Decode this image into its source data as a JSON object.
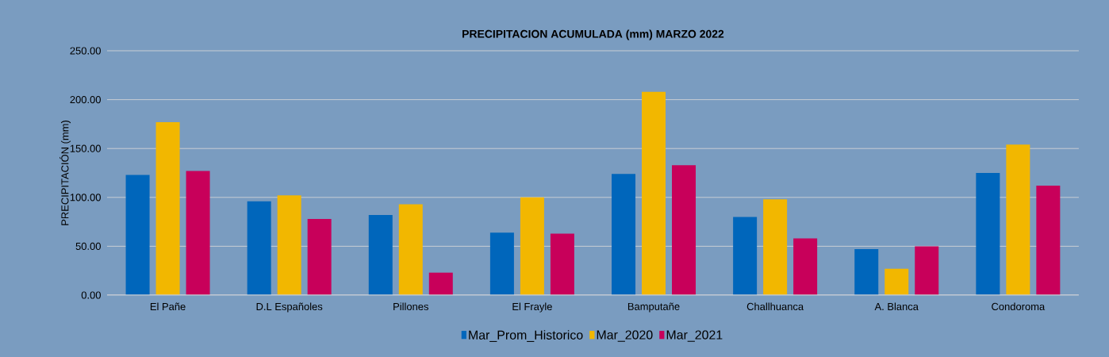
{
  "chart_data": {
    "type": "bar",
    "title": "PRECIPITACION ACUMULADA (mm)    MARZO 2022",
    "ylabel": "PRECIPITACIÓN (mm)",
    "categories": [
      "El Pañe",
      "D.L Españoles",
      "Pillones",
      "El Frayle",
      "Bamputañe",
      "Challhuanca",
      "A. Blanca",
      "Condoroma"
    ],
    "series": [
      {
        "name": "Mar_Prom_Historico",
        "color": "#0066bb",
        "values": [
          123,
          96,
          82,
          64,
          124,
          80,
          47,
          125
        ]
      },
      {
        "name": "Mar_2020",
        "color": "#f2b700",
        "values": [
          177,
          102,
          93,
          100,
          208,
          98,
          27,
          154
        ]
      },
      {
        "name": "Mar_2021",
        "color": "#c8005a",
        "values": [
          127,
          78,
          23,
          63,
          133,
          58,
          50,
          112
        ]
      }
    ],
    "ylim": [
      0,
      250
    ],
    "yticks": [
      {
        "value": 0,
        "label": "0.00"
      },
      {
        "value": 50,
        "label": "50.00"
      },
      {
        "value": 100,
        "label": "100.00"
      },
      {
        "value": 150,
        "label": "150.00"
      },
      {
        "value": 200,
        "label": "200.00"
      },
      {
        "value": 250,
        "label": "250.00"
      }
    ],
    "grid": "y",
    "legend": "bottom"
  }
}
